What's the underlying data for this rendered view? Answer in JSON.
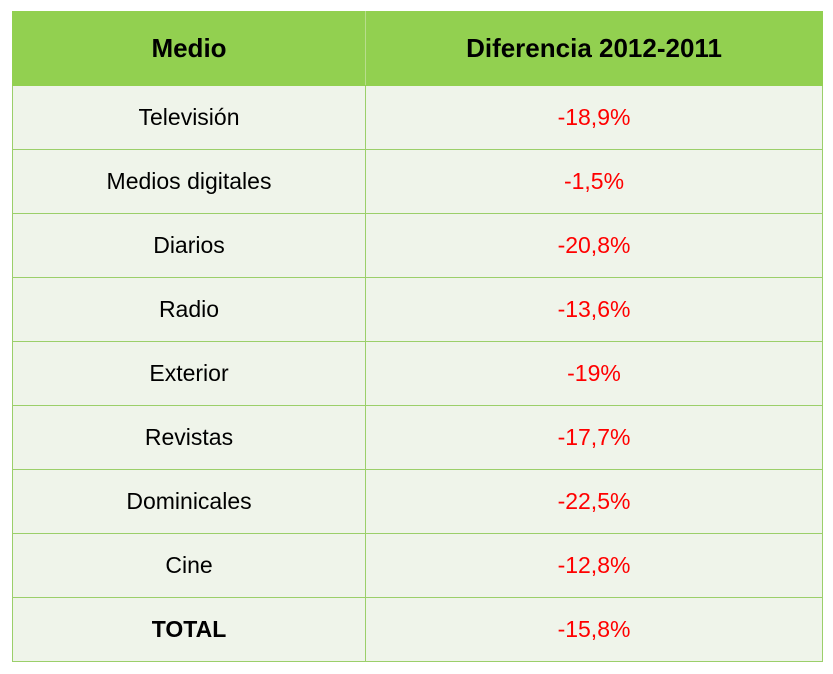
{
  "table": {
    "headers": [
      "Medio",
      "Diferencia 2012-2011"
    ],
    "rows": [
      {
        "medio": "Televisión",
        "diferencia": "-18,9%"
      },
      {
        "medio": "Medios digitales",
        "diferencia": "-1,5%"
      },
      {
        "medio": "Diarios",
        "diferencia": "-20,8%"
      },
      {
        "medio": "Radio",
        "diferencia": "-13,6%"
      },
      {
        "medio": "Exterior",
        "diferencia": "-19%"
      },
      {
        "medio": "Revistas",
        "diferencia": "-17,7%"
      },
      {
        "medio": "Dominicales",
        "diferencia": "-22,5%"
      },
      {
        "medio": "Cine",
        "diferencia": "-12,8%"
      },
      {
        "medio": "TOTAL",
        "diferencia": "-15,8%"
      }
    ]
  },
  "colors": {
    "header_bg": "#92d050",
    "row_bg": "#eff4ea",
    "border": "#9bcf6a",
    "negative_value": "#ff0000"
  }
}
